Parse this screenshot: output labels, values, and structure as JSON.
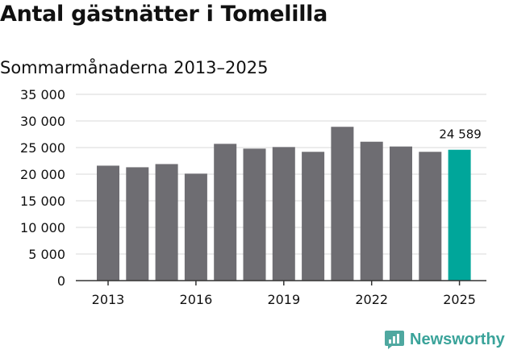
{
  "title": "Antal gästnätter i Tomelilla",
  "subtitle": "Sommarmånaderna 2013–2025",
  "brand": {
    "name": "Newsworthy",
    "icon": "newsworthy-logo-icon"
  },
  "colors": {
    "bar": "#6e6d72",
    "highlight": "#00a69a",
    "grid": "#d9d9d9",
    "axis": "#333333"
  },
  "chart_data": {
    "type": "bar",
    "title": "Antal gästnätter i Tomelilla",
    "subtitle": "Sommarmånaderna 2013–2025",
    "categories": [
      "2013",
      "2014",
      "2015",
      "2016",
      "2017",
      "2018",
      "2019",
      "2020",
      "2021",
      "2022",
      "2023",
      "2024",
      "2025"
    ],
    "values": [
      21600,
      21300,
      21900,
      20100,
      25700,
      24800,
      25100,
      24200,
      28900,
      26100,
      25200,
      24200,
      24589
    ],
    "highlight_index": 12,
    "highlight_label": "24 589",
    "ylim": [
      0,
      35000
    ],
    "yticks": [
      0,
      5000,
      10000,
      15000,
      20000,
      25000,
      30000,
      35000
    ],
    "ytick_labels": [
      "0",
      "5 000",
      "10 000",
      "15 000",
      "20 000",
      "25 000",
      "30 000",
      "35 000"
    ],
    "xtick_labels": [
      "2013",
      "2016",
      "2019",
      "2022",
      "2025"
    ],
    "xtick_indices": [
      0,
      3,
      6,
      9,
      12
    ],
    "grid": true
  }
}
